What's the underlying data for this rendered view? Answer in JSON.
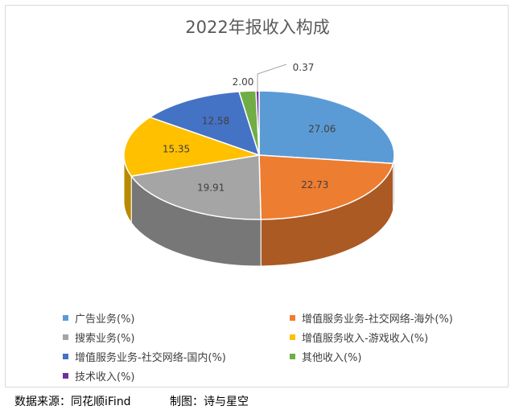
{
  "chart_data": {
    "type": "pie",
    "title": "2022年报收入构成",
    "categories": [
      "广告业务(%)",
      "增值服务业务-社交网络-海外(%)",
      "搜索业务(%)",
      "增值服务收入-游戏收入(%)",
      "增值服务业务-社交网络-国内(%)",
      "其他收入(%)",
      "技术收入(%)"
    ],
    "values": [
      27.06,
      22.73,
      19.91,
      15.35,
      12.58,
      2.0,
      0.37
    ],
    "labels": [
      "27.06",
      "22.73",
      "19.91",
      "15.35",
      "12.58",
      "2.00",
      "0.37"
    ],
    "colors": [
      "#5b9bd5",
      "#ed7d31",
      "#a5a5a5",
      "#ffc000",
      "#4472c4",
      "#70ad47",
      "#7030a0"
    ],
    "legend_position": "bottom",
    "style": "3d"
  },
  "footer": {
    "source": "数据来源：同花顺iFind",
    "author": "制图：诗与星空"
  }
}
